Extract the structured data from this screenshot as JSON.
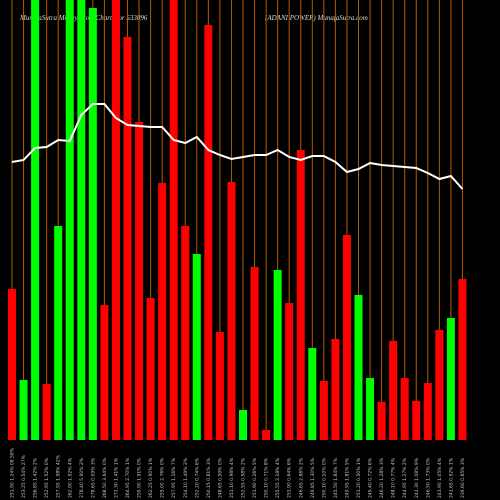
{
  "chart_data": {
    "type": "bar",
    "title": "MunafaSutra Money Flow Charts for 533096",
    "subtitle": "(ADANI POWER) MunafaSutra.com",
    "categories": [
      "251.90 1.24% 08.58%",
      "253.25 0.54% 27%",
      "256.85 1.42% 2%",
      "252.95 1.52% 0%",
      "257.95 1.98% 42%",
      "262.90 1.92% 4%",
      "278.40 5.90% 2%",
      "278.65 0.09% 3%",
      "268.50 3.64% 0%",
      "272.30 1.41% 1%",
      "264.95 2.70% 1%",
      "259.90 1.91% 0%",
      "262.25 0.90% 1%",
      "255.00 2.76% 0%",
      "257.95 1.16% 7%",
      "254.10 1.49% 2%",
      "252.20 0.74% 6%",
      "250.15 0.81% 3%",
      "248.65 0.59% 0%",
      "251.10 0.98% 4%",
      "252.55 0.58% 2%",
      "251.90 0.26% 5%",
      "250.10 0.71% 8%",
      "255.55 2.18% 4%",
      "253.90 0.64% 6%",
      "246.65 2.86% 2%",
      "249.85 1.30% 5%",
      "250.10 0.10% 0%",
      "245.50 1.84% 7%",
      "249.95 1.81% 5%",
      "251.20 0.50% 1%",
      "249.40 0.72% 6%",
      "246.20 1.28% 3%",
      "248.10 0.77% 4%",
      "244.95 1.27% 2%",
      "242.30 1.08% 9%",
      "246.50 1.73% 0%",
      "243.90 1.05% 4%",
      "241.65 0.92% 1%",
      "239.60 0.85% 3%"
    ],
    "values": [
      151,
      60,
      440,
      56,
      214,
      440,
      440,
      432,
      135,
      440,
      403,
      318,
      142,
      257,
      440,
      214,
      186,
      415,
      108,
      258,
      30,
      173,
      10,
      170,
      137,
      290,
      92,
      59,
      101,
      205,
      145,
      62,
      38,
      99,
      62,
      39,
      57,
      110,
      122,
      161
    ],
    "colors": [
      "#ff0000",
      "#00ff00",
      "#00ff00",
      "#ff0000",
      "#00ff00",
      "#00ff00",
      "#00ff00",
      "#00ff00",
      "#ff0000",
      "#ff0000",
      "#ff0000",
      "#ff0000",
      "#ff0000",
      "#ff0000",
      "#ff0000",
      "#ff0000",
      "#00ff00",
      "#ff0000",
      "#ff0000",
      "#ff0000",
      "#00ff00",
      "#ff0000",
      "#ff0000",
      "#00ff00",
      "#ff0000",
      "#ff0000",
      "#00ff00",
      "#ff0000",
      "#ff0000",
      "#ff0000",
      "#00ff00",
      "#00ff00",
      "#ff0000",
      "#ff0000",
      "#ff0000",
      "#ff0000",
      "#ff0000",
      "#ff0000",
      "#00ff00",
      "#ff0000"
    ],
    "line": {
      "color": "#ffffff",
      "values": [
        278,
        280,
        292,
        293,
        300,
        299,
        325,
        336,
        336,
        322,
        315,
        314,
        313,
        313,
        300,
        297,
        303,
        290,
        285,
        281,
        283,
        285,
        285,
        290,
        283,
        280,
        284,
        284,
        278,
        268,
        271,
        277,
        275,
        274,
        273,
        272,
        267,
        261,
        264,
        251
      ]
    },
    "ylim": [
      0,
      440
    ],
    "divider_color": "#b35c00"
  }
}
